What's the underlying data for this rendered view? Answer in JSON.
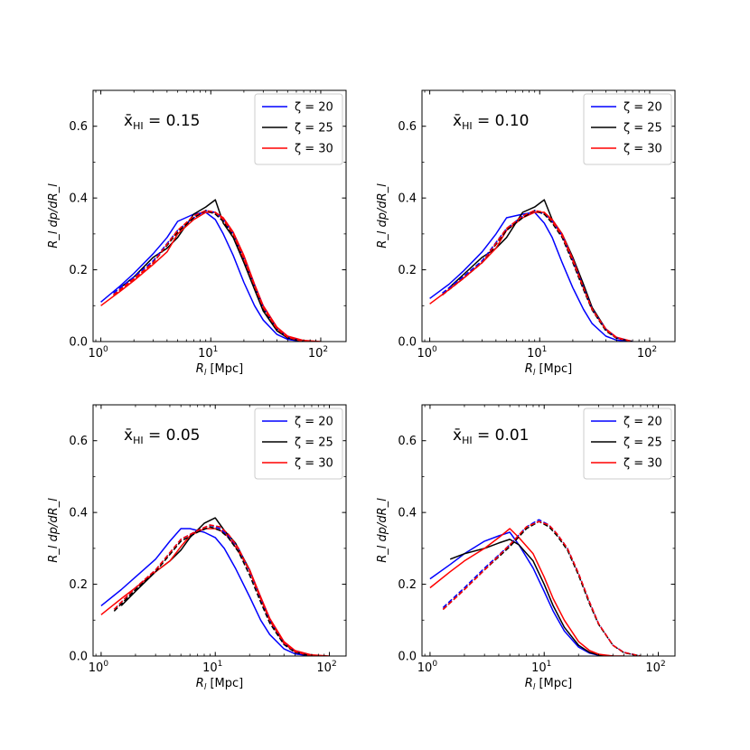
{
  "chart_data": [
    {
      "type": "line",
      "annotation_main": "x̄",
      "annotation_sub": "HI",
      "annotation_value": " = 0.15",
      "xscale": "log",
      "xlim": [
        0.85,
        170
      ],
      "ylim": [
        0,
        0.7
      ],
      "xlabel_main": "R",
      "xlabel_sub": "l",
      "xlabel_unit": " [Mpc]",
      "ylabel": "R_l dp/dR_l",
      "yticks": [
        0.0,
        0.2,
        0.4,
        0.6
      ],
      "ytick_labels": [
        "0.0",
        "0.2",
        "0.4",
        "0.6"
      ],
      "xticks": [
        1,
        10,
        100
      ],
      "xtick_base": [
        "10",
        "10",
        "10"
      ],
      "xtick_exp": [
        "0",
        "1",
        "2"
      ],
      "legend_placement": "top-right",
      "series": [
        {
          "name": "ζ = 20",
          "color": "#0000ff",
          "dash": false,
          "x": [
            1,
            1.5,
            2,
            3,
            4,
            5,
            7,
            9,
            11,
            13,
            16,
            20,
            25,
            30,
            40,
            50,
            70
          ],
          "y": [
            0.11,
            0.155,
            0.19,
            0.245,
            0.29,
            0.335,
            0.355,
            0.36,
            0.34,
            0.3,
            0.24,
            0.165,
            0.1,
            0.06,
            0.02,
            0.006,
            0.0
          ]
        },
        {
          "name": "ζ = 25",
          "color": "#000000",
          "dash": false,
          "x": [
            1.5,
            2,
            3,
            4,
            5,
            7,
            9,
            11,
            13,
            16,
            20,
            25,
            30,
            40,
            50,
            70
          ],
          "y": [
            0.15,
            0.18,
            0.235,
            0.26,
            0.29,
            0.355,
            0.375,
            0.395,
            0.33,
            0.29,
            0.22,
            0.145,
            0.085,
            0.03,
            0.01,
            0.0
          ]
        },
        {
          "name": "ζ = 30",
          "color": "#ff0000",
          "dash": false,
          "x": [
            1,
            1.5,
            2,
            3,
            4,
            5,
            7,
            9,
            11,
            13,
            16,
            20,
            25,
            30,
            40,
            50,
            70,
            100
          ],
          "y": [
            0.1,
            0.14,
            0.17,
            0.215,
            0.25,
            0.3,
            0.34,
            0.36,
            0.36,
            0.345,
            0.305,
            0.24,
            0.16,
            0.1,
            0.04,
            0.015,
            0.003,
            0.0
          ]
        },
        {
          "name": "",
          "color": "#0000ff",
          "dash": true,
          "x": [
            1.3,
            2,
            3,
            5,
            7,
            9,
            11,
            13,
            16,
            20,
            25,
            30,
            40,
            50,
            70
          ],
          "y": [
            0.135,
            0.18,
            0.225,
            0.31,
            0.345,
            0.365,
            0.36,
            0.34,
            0.3,
            0.23,
            0.155,
            0.095,
            0.035,
            0.012,
            0.0
          ]
        },
        {
          "name": "",
          "color": "#000000",
          "dash": true,
          "x": [
            1.3,
            2,
            3,
            5,
            7,
            9,
            11,
            13,
            16,
            20,
            25,
            30,
            40,
            50,
            70
          ],
          "y": [
            0.13,
            0.175,
            0.22,
            0.305,
            0.345,
            0.365,
            0.355,
            0.335,
            0.295,
            0.225,
            0.15,
            0.09,
            0.033,
            0.01,
            0.0
          ]
        },
        {
          "name": "",
          "color": "#ff0000",
          "dash": true,
          "x": [
            1.3,
            2,
            3,
            5,
            7,
            9,
            11,
            13,
            16,
            20,
            25,
            30,
            40,
            50,
            70
          ],
          "y": [
            0.13,
            0.175,
            0.22,
            0.31,
            0.35,
            0.365,
            0.36,
            0.34,
            0.3,
            0.23,
            0.155,
            0.095,
            0.035,
            0.012,
            0.0
          ]
        }
      ]
    },
    {
      "type": "line",
      "annotation_main": "x̄",
      "annotation_sub": "HI",
      "annotation_value": " = 0.10",
      "xscale": "log",
      "xlim": [
        0.85,
        170
      ],
      "ylim": [
        0,
        0.7
      ],
      "xlabel_main": "R",
      "xlabel_sub": "l",
      "xlabel_unit": " [Mpc]",
      "ylabel": "R_l dp/dR_l",
      "yticks": [
        0.0,
        0.2,
        0.4,
        0.6
      ],
      "ytick_labels": [
        "0.0",
        "0.2",
        "0.4",
        "0.6"
      ],
      "xticks": [
        1,
        10,
        100
      ],
      "xtick_base": [
        "10",
        "10",
        "10"
      ],
      "xtick_exp": [
        "0",
        "1",
        "2"
      ],
      "legend_placement": "top-right",
      "series": [
        {
          "name": "ζ = 20",
          "color": "#0000ff",
          "dash": false,
          "x": [
            1,
            1.5,
            2,
            3,
            4,
            5,
            7,
            9,
            11,
            13,
            16,
            20,
            25,
            30,
            40,
            50,
            70
          ],
          "y": [
            0.12,
            0.16,
            0.195,
            0.25,
            0.3,
            0.345,
            0.355,
            0.36,
            0.33,
            0.29,
            0.22,
            0.15,
            0.09,
            0.05,
            0.015,
            0.004,
            0.0
          ]
        },
        {
          "name": "ζ = 25",
          "color": "#000000",
          "dash": false,
          "x": [
            1.5,
            2,
            3,
            4,
            5,
            7,
            9,
            11,
            13,
            16,
            20,
            25,
            30,
            40,
            50,
            70
          ],
          "y": [
            0.15,
            0.185,
            0.235,
            0.26,
            0.29,
            0.36,
            0.375,
            0.395,
            0.34,
            0.3,
            0.235,
            0.16,
            0.095,
            0.035,
            0.01,
            0.0
          ]
        },
        {
          "name": "ζ = 30",
          "color": "#ff0000",
          "dash": false,
          "x": [
            1,
            1.5,
            2,
            3,
            4,
            5,
            7,
            9,
            11,
            13,
            16,
            20,
            25,
            30,
            40,
            50,
            70
          ],
          "y": [
            0.105,
            0.145,
            0.175,
            0.22,
            0.26,
            0.31,
            0.345,
            0.36,
            0.36,
            0.34,
            0.3,
            0.23,
            0.15,
            0.09,
            0.035,
            0.012,
            0.0
          ]
        },
        {
          "name": "",
          "color": "#0000ff",
          "dash": true,
          "x": [
            1.3,
            2,
            3,
            5,
            7,
            9,
            11,
            13,
            16,
            20,
            25,
            30,
            40,
            50,
            70
          ],
          "y": [
            0.135,
            0.18,
            0.225,
            0.315,
            0.35,
            0.365,
            0.355,
            0.335,
            0.295,
            0.225,
            0.15,
            0.09,
            0.033,
            0.01,
            0.0
          ]
        },
        {
          "name": "",
          "color": "#000000",
          "dash": true,
          "x": [
            1.3,
            2,
            3,
            5,
            7,
            9,
            11,
            13,
            16,
            20,
            25,
            30,
            40,
            50,
            70
          ],
          "y": [
            0.13,
            0.175,
            0.22,
            0.31,
            0.345,
            0.365,
            0.355,
            0.33,
            0.29,
            0.22,
            0.145,
            0.088,
            0.03,
            0.009,
            0.0
          ]
        },
        {
          "name": "",
          "color": "#ff0000",
          "dash": true,
          "x": [
            1.3,
            2,
            3,
            5,
            7,
            9,
            11,
            13,
            16,
            20,
            25,
            30,
            40,
            50,
            70
          ],
          "y": [
            0.13,
            0.175,
            0.22,
            0.315,
            0.35,
            0.365,
            0.36,
            0.335,
            0.295,
            0.225,
            0.15,
            0.09,
            0.033,
            0.01,
            0.0
          ]
        }
      ]
    },
    {
      "type": "line",
      "annotation_main": "x̄",
      "annotation_sub": "HI",
      "annotation_value": " = 0.05",
      "xscale": "log",
      "xlim": [
        0.85,
        140
      ],
      "ylim": [
        0,
        0.7
      ],
      "xlabel_main": "R",
      "xlabel_sub": "l",
      "xlabel_unit": " [Mpc]",
      "ylabel": "R_l dp/dR_l",
      "yticks": [
        0.0,
        0.2,
        0.4,
        0.6
      ],
      "ytick_labels": [
        "0.0",
        "0.2",
        "0.4",
        "0.6"
      ],
      "xticks": [
        1,
        10,
        100
      ],
      "xtick_base": [
        "10",
        "10",
        "10"
      ],
      "xtick_exp": [
        "0",
        "1",
        "2"
      ],
      "legend_placement": "top-right",
      "series": [
        {
          "name": "ζ = 20",
          "color": "#0000ff",
          "dash": false,
          "x": [
            1,
            1.5,
            2,
            3,
            4,
            5,
            6,
            8,
            10,
            12,
            15,
            20,
            25,
            30,
            40,
            50,
            70
          ],
          "y": [
            0.14,
            0.185,
            0.22,
            0.27,
            0.32,
            0.355,
            0.355,
            0.345,
            0.33,
            0.3,
            0.245,
            0.165,
            0.1,
            0.06,
            0.02,
            0.006,
            0.0
          ]
        },
        {
          "name": "ζ = 25",
          "color": "#000000",
          "dash": false,
          "x": [
            1.5,
            2,
            3,
            4,
            5,
            6,
            8,
            10,
            12,
            15,
            20,
            25,
            30,
            40,
            50,
            70
          ],
          "y": [
            0.14,
            0.18,
            0.235,
            0.265,
            0.295,
            0.33,
            0.37,
            0.385,
            0.35,
            0.315,
            0.24,
            0.16,
            0.1,
            0.035,
            0.012,
            0.0
          ]
        },
        {
          "name": "ζ = 30",
          "color": "#ff0000",
          "dash": false,
          "x": [
            1,
            1.5,
            2,
            3,
            4,
            5,
            6,
            8,
            10,
            12,
            15,
            20,
            25,
            30,
            40,
            50,
            70,
            100
          ],
          "y": [
            0.115,
            0.16,
            0.19,
            0.235,
            0.265,
            0.305,
            0.335,
            0.355,
            0.355,
            0.345,
            0.305,
            0.24,
            0.165,
            0.105,
            0.04,
            0.015,
            0.003,
            0.0
          ]
        },
        {
          "name": "",
          "color": "#0000ff",
          "dash": true,
          "x": [
            1.3,
            2,
            3,
            5,
            7,
            9,
            11,
            13,
            16,
            20,
            25,
            30,
            40,
            50,
            70
          ],
          "y": [
            0.13,
            0.19,
            0.24,
            0.325,
            0.35,
            0.365,
            0.355,
            0.335,
            0.3,
            0.235,
            0.16,
            0.1,
            0.035,
            0.012,
            0.0
          ]
        },
        {
          "name": "",
          "color": "#000000",
          "dash": true,
          "x": [
            1.3,
            2,
            3,
            5,
            7,
            9,
            11,
            13,
            16,
            20,
            25,
            30,
            40,
            50,
            70
          ],
          "y": [
            0.125,
            0.185,
            0.235,
            0.32,
            0.345,
            0.36,
            0.35,
            0.33,
            0.29,
            0.225,
            0.15,
            0.092,
            0.032,
            0.01,
            0.0
          ]
        },
        {
          "name": "",
          "color": "#ff0000",
          "dash": true,
          "x": [
            1.3,
            2,
            3,
            5,
            7,
            9,
            11,
            13,
            16,
            20,
            25,
            30,
            40,
            50,
            70
          ],
          "y": [
            0.13,
            0.19,
            0.24,
            0.325,
            0.35,
            0.365,
            0.36,
            0.34,
            0.3,
            0.235,
            0.16,
            0.1,
            0.036,
            0.012,
            0.0
          ]
        }
      ]
    },
    {
      "type": "line",
      "annotation_main": "x̄",
      "annotation_sub": "HI",
      "annotation_value": " = 0.01",
      "xscale": "log",
      "xlim": [
        0.85,
        140
      ],
      "ylim": [
        0,
        0.7
      ],
      "xlabel_main": "R",
      "xlabel_sub": "l",
      "xlabel_unit": " [Mpc]",
      "ylabel": "R_l dp/dR_l",
      "yticks": [
        0.0,
        0.2,
        0.4,
        0.6
      ],
      "ytick_labels": [
        "0.0",
        "0.2",
        "0.4",
        "0.6"
      ],
      "xticks": [
        1,
        10,
        100
      ],
      "xtick_base": [
        "10",
        "10",
        "10"
      ],
      "xtick_exp": [
        "0",
        "1",
        "2"
      ],
      "legend_placement": "top-right",
      "series": [
        {
          "name": "ζ = 20",
          "color": "#0000ff",
          "dash": false,
          "x": [
            1,
            1.5,
            2,
            3,
            4,
            5,
            6,
            8,
            10,
            12,
            15,
            20,
            25,
            30,
            40
          ],
          "y": [
            0.215,
            0.255,
            0.285,
            0.32,
            0.335,
            0.345,
            0.31,
            0.245,
            0.18,
            0.125,
            0.07,
            0.025,
            0.008,
            0.002,
            0.0
          ]
        },
        {
          "name": "ζ = 25",
          "color": "#000000",
          "dash": false,
          "x": [
            1.5,
            2,
            3,
            4,
            5,
            6,
            8,
            10,
            12,
            15,
            20,
            25,
            30,
            40
          ],
          "y": [
            0.27,
            0.285,
            0.3,
            0.315,
            0.325,
            0.31,
            0.265,
            0.2,
            0.14,
            0.08,
            0.03,
            0.01,
            0.003,
            0.0
          ]
        },
        {
          "name": "ζ = 30",
          "color": "#ff0000",
          "dash": false,
          "x": [
            1,
            1.5,
            2,
            3,
            4,
            5,
            6,
            8,
            10,
            12,
            15,
            20,
            25,
            30,
            40,
            50
          ],
          "y": [
            0.19,
            0.235,
            0.265,
            0.3,
            0.33,
            0.355,
            0.33,
            0.285,
            0.22,
            0.16,
            0.1,
            0.04,
            0.015,
            0.005,
            0.0,
            0.0
          ]
        },
        {
          "name": "",
          "color": "#0000ff",
          "dash": true,
          "x": [
            1.3,
            2,
            3,
            5,
            7,
            9,
            11,
            13,
            16,
            20,
            25,
            30,
            40,
            50,
            70
          ],
          "y": [
            0.135,
            0.19,
            0.245,
            0.31,
            0.36,
            0.38,
            0.365,
            0.34,
            0.3,
            0.23,
            0.15,
            0.09,
            0.03,
            0.01,
            0.0
          ]
        },
        {
          "name": "",
          "color": "#000000",
          "dash": true,
          "x": [
            1.3,
            2,
            3,
            5,
            7,
            9,
            11,
            13,
            16,
            20,
            25,
            30,
            40,
            50,
            70
          ],
          "y": [
            0.13,
            0.185,
            0.24,
            0.305,
            0.355,
            0.375,
            0.36,
            0.335,
            0.295,
            0.225,
            0.145,
            0.088,
            0.03,
            0.009,
            0.0
          ]
        },
        {
          "name": "",
          "color": "#ff0000",
          "dash": true,
          "x": [
            1.3,
            2,
            3,
            5,
            7,
            9,
            11,
            13,
            16,
            20,
            25,
            30,
            40,
            50,
            70
          ],
          "y": [
            0.13,
            0.185,
            0.24,
            0.31,
            0.36,
            0.375,
            0.365,
            0.34,
            0.3,
            0.23,
            0.15,
            0.09,
            0.03,
            0.01,
            0.0
          ]
        }
      ]
    }
  ]
}
